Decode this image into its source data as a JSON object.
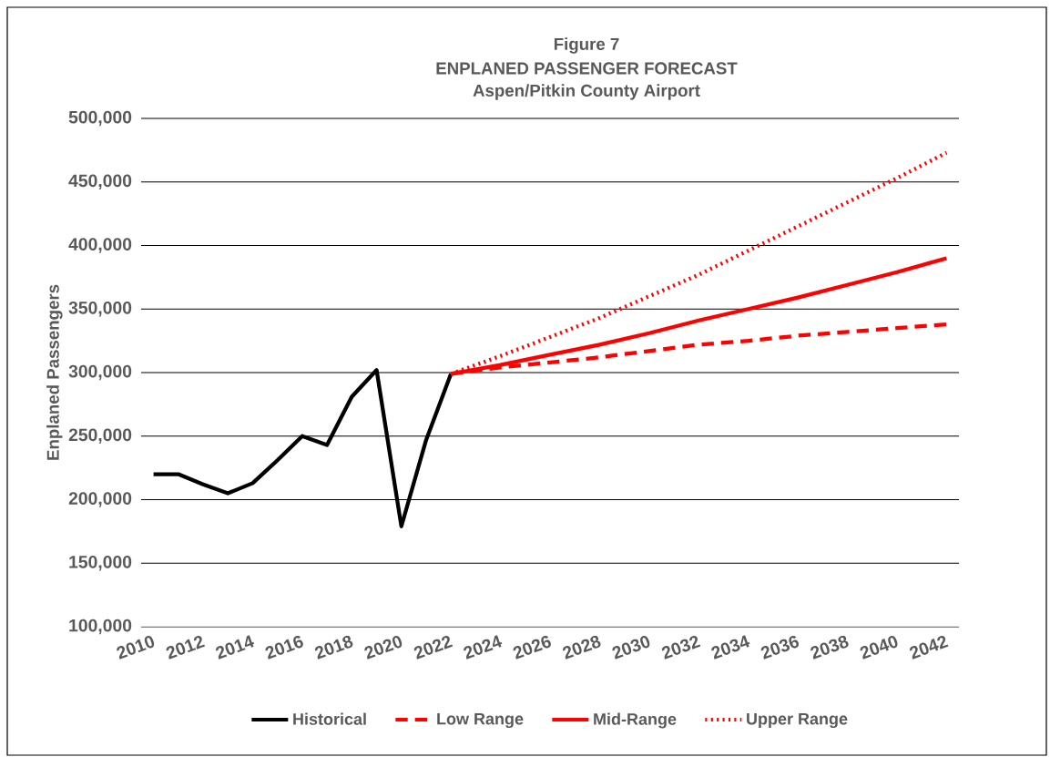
{
  "chart_data": {
    "type": "line",
    "annotations": [
      "Figure 7"
    ],
    "title": "ENPLANED PASSENGER FORECAST",
    "subtitle": "Aspen/Pitkin County Airport",
    "ylabel": "Enplaned Passengers",
    "xlim": [
      2009.5,
      2042.5
    ],
    "xticks": [
      2010,
      2012,
      2014,
      2016,
      2018,
      2020,
      2022,
      2024,
      2026,
      2028,
      2030,
      2032,
      2034,
      2036,
      2038,
      2040,
      2042
    ],
    "ylim": [
      100000,
      500000
    ],
    "yticks": [
      {
        "value": 100000,
        "label": "100,000"
      },
      {
        "value": 150000,
        "label": "150,000"
      },
      {
        "value": 200000,
        "label": "200,000"
      },
      {
        "value": 250000,
        "label": "250,000"
      },
      {
        "value": 300000,
        "label": "300,000"
      },
      {
        "value": 350000,
        "label": "350,000"
      },
      {
        "value": 400000,
        "label": "400,000"
      },
      {
        "value": 450000,
        "label": "450,000"
      },
      {
        "value": 500000,
        "label": "500,000"
      }
    ],
    "grid": "y",
    "legend": "bottom",
    "marker": "none",
    "series": [
      {
        "name": "Historical",
        "color": "#000000",
        "line_style": "solid",
        "x": [
          2010,
          2011,
          2012,
          2013,
          2014,
          2015,
          2016,
          2017,
          2018,
          2019,
          2020,
          2021,
          2022
        ],
        "values": [
          220000,
          220000,
          212000,
          205000,
          213000,
          231000,
          250000,
          243000,
          281000,
          302000,
          179000,
          247000,
          299000
        ]
      },
      {
        "name": "Low Range",
        "color": "#ff0000",
        "line_style": "dashed",
        "x": [
          2022,
          2024,
          2026,
          2028,
          2030,
          2032,
          2034,
          2036,
          2038,
          2040,
          2042
        ],
        "values": [
          299000,
          304000,
          308000,
          312000,
          317000,
          322000,
          325000,
          329000,
          332000,
          335000,
          338000
        ]
      },
      {
        "name": "Mid-Range",
        "color": "#ff0000",
        "line_style": "solid",
        "x": [
          2022,
          2024,
          2026,
          2028,
          2030,
          2032,
          2034,
          2036,
          2038,
          2040,
          2042
        ],
        "values": [
          299000,
          306000,
          314000,
          322000,
          331000,
          341000,
          350000,
          359000,
          369000,
          379000,
          390000
        ]
      },
      {
        "name": "Upper Range",
        "color": "#ff0000",
        "line_style": "dotted",
        "x": [
          2022,
          2024,
          2026,
          2028,
          2030,
          2032,
          2034,
          2036,
          2038,
          2040,
          2042
        ],
        "values": [
          299000,
          313000,
          328000,
          343000,
          360000,
          377000,
          396000,
          415000,
          434000,
          453000,
          473000
        ]
      }
    ]
  }
}
